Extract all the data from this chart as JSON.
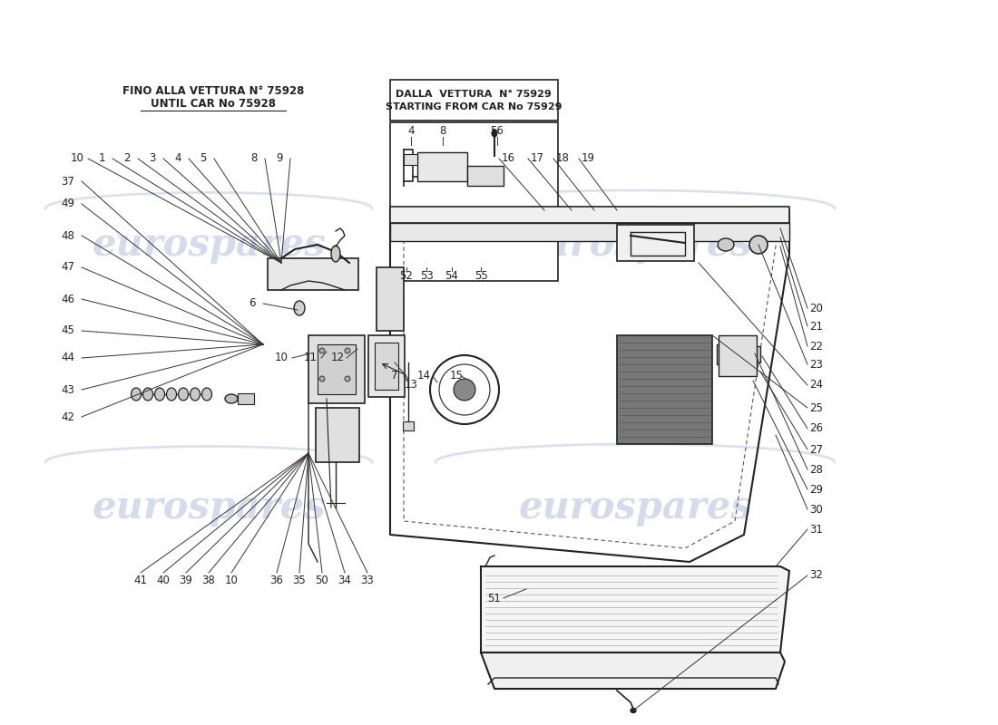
{
  "bg_color": "#ffffff",
  "line_color": "#222222",
  "watermark_color": "#cdd6e8",
  "box1_line1": "FINO ALLA VETTURA N° 75928",
  "box1_line2": "UNTIL CAR No 75928",
  "box2_line1": "DALLA  VETTURA  N° 75929",
  "box2_line2": "STARTING FROM CAR No 75929"
}
